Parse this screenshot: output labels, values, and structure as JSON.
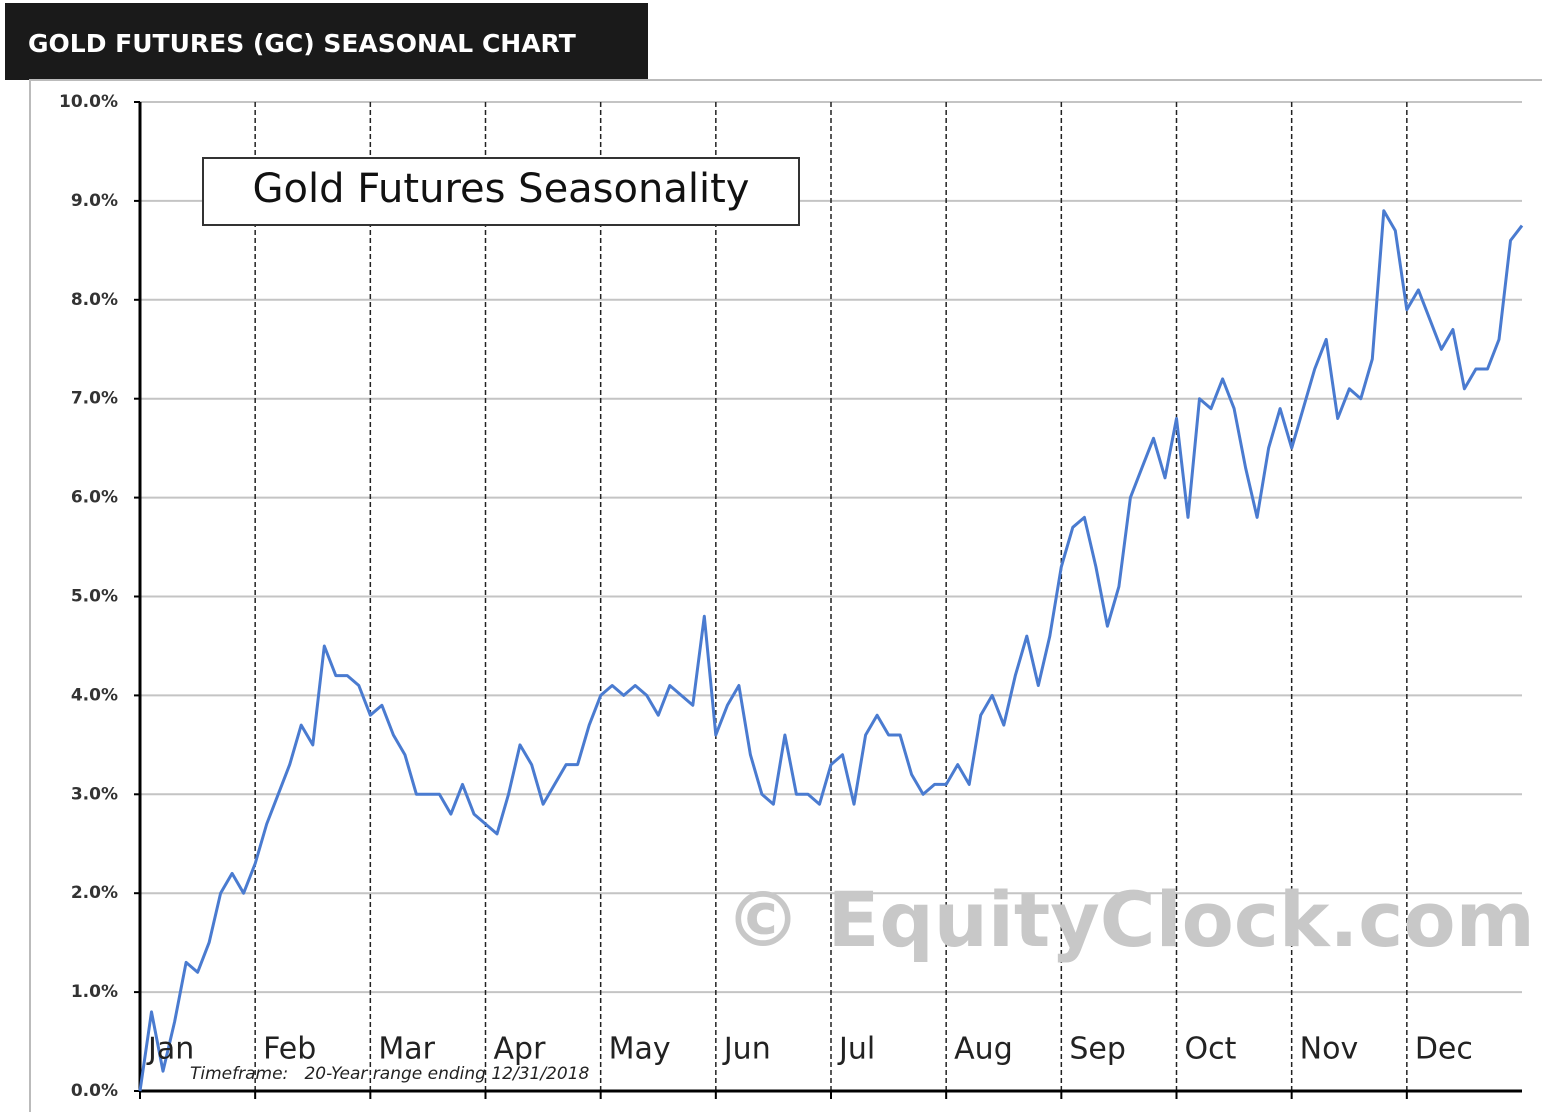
{
  "chart_data": {
    "type": "line",
    "title": "GOLD FUTURES (GC) SEASONAL CHART",
    "subtitle": "Gold Futures Seasonality",
    "watermark": "© EquityClock.com",
    "footnote": "Timeframe:   20-Year range ending 12/31/2018",
    "categories": [
      "Jan",
      null,
      null,
      null,
      null,
      null,
      null,
      null,
      null,
      null,
      "Feb",
      null,
      null,
      null,
      null,
      null,
      null,
      null,
      null,
      null,
      "Mar",
      null,
      null,
      null,
      null,
      null,
      null,
      null,
      null,
      null,
      "Apr",
      null,
      null,
      null,
      null,
      null,
      null,
      null,
      null,
      null,
      "May",
      null,
      null,
      null,
      null,
      null,
      null,
      null,
      null,
      null,
      "Jun",
      null,
      null,
      null,
      null,
      null,
      null,
      null,
      null,
      null,
      "Jul",
      null,
      null,
      null,
      null,
      null,
      null,
      null,
      null,
      null,
      "Aug",
      null,
      null,
      null,
      null,
      null,
      null,
      null,
      null,
      null,
      "Sep",
      null,
      null,
      null,
      null,
      null,
      null,
      null,
      null,
      null,
      "Oct",
      null,
      null,
      null,
      null,
      null,
      null,
      null,
      null,
      null,
      "Nov",
      null,
      null,
      null,
      null,
      null,
      null,
      null,
      null,
      null,
      "Dec",
      null,
      null,
      null,
      null,
      null,
      null,
      null,
      null,
      null,
      null
    ],
    "values": [
      0.0,
      0.8,
      0.2,
      0.7,
      1.3,
      1.2,
      1.5,
      2.0,
      2.2,
      2.0,
      2.3,
      2.7,
      3.0,
      3.3,
      3.7,
      3.5,
      4.5,
      4.2,
      4.2,
      4.1,
      3.8,
      3.9,
      3.6,
      3.4,
      3.0,
      3.0,
      3.0,
      2.8,
      3.1,
      2.8,
      2.7,
      2.6,
      3.0,
      3.5,
      3.3,
      2.9,
      3.1,
      3.3,
      3.3,
      3.7,
      4.0,
      4.1,
      4.0,
      4.1,
      4.0,
      3.8,
      4.1,
      4.0,
      3.9,
      4.8,
      3.6,
      3.9,
      4.1,
      3.4,
      3.0,
      2.9,
      3.6,
      3.0,
      3.0,
      2.9,
      3.3,
      3.4,
      2.9,
      3.6,
      3.8,
      3.6,
      3.6,
      3.2,
      3.0,
      3.1,
      3.1,
      3.3,
      3.1,
      3.8,
      4.0,
      3.7,
      4.2,
      4.6,
      4.1,
      4.6,
      5.3,
      5.7,
      5.8,
      5.3,
      4.7,
      5.1,
      6.0,
      6.3,
      6.6,
      6.2,
      6.8,
      5.8,
      7.0,
      6.9,
      7.2,
      6.9,
      6.3,
      5.8,
      6.5,
      6.9,
      6.5,
      6.9,
      7.3,
      7.6,
      6.8,
      7.1,
      7.0,
      7.4,
      8.9,
      8.7,
      7.9,
      8.1,
      7.8,
      7.5,
      7.7,
      7.1,
      7.3,
      7.3,
      7.6,
      8.6,
      8.75
    ],
    "color": "#4a7bd0",
    "ylim": [
      0,
      10
    ],
    "yticks": [
      {
        "value": 0,
        "label": "0.0%"
      },
      {
        "value": 1,
        "label": "1.0%"
      },
      {
        "value": 2,
        "label": "2.0%"
      },
      {
        "value": 3,
        "label": "3.0%"
      },
      {
        "value": 4,
        "label": "4.0%"
      },
      {
        "value": 5,
        "label": "5.0%"
      },
      {
        "value": 6,
        "label": "6.0%"
      },
      {
        "value": 7,
        "label": "7.0%"
      },
      {
        "value": 8,
        "label": "8.0%"
      },
      {
        "value": 9,
        "label": "9.0%"
      },
      {
        "value": 10,
        "label": "10.0%"
      }
    ],
    "grid": true
  }
}
